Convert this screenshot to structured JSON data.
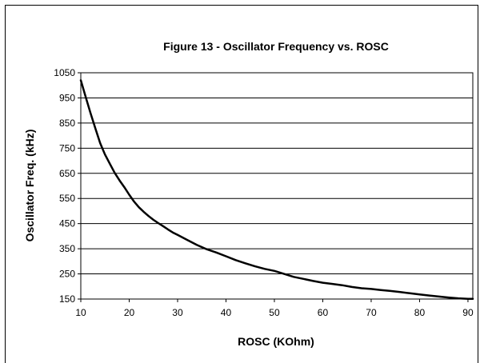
{
  "chart_data": {
    "type": "line",
    "title": "Figure 13 - Oscillator Frequency vs. ROSC",
    "xlabel": "ROSC (KOhm)",
    "ylabel": "Oscillator Freq. (kHz)",
    "xlim": [
      10,
      91
    ],
    "ylim": [
      150,
      1050
    ],
    "x_ticks": [
      10,
      20,
      30,
      40,
      50,
      60,
      70,
      80,
      90
    ],
    "y_ticks": [
      150,
      250,
      350,
      450,
      550,
      650,
      750,
      850,
      950,
      1050
    ],
    "x_tick_labels": [
      "10",
      "20",
      "30",
      "40",
      "50",
      "60",
      "70",
      "80",
      "90"
    ],
    "y_tick_labels": [
      "150",
      "250",
      "350",
      "450",
      "550",
      "650",
      "750",
      "850",
      "950",
      "1050"
    ],
    "grid": "horizontal",
    "series": [
      {
        "color": "#000000",
        "x": [
          10,
          11,
          12,
          13,
          14,
          15,
          16,
          17,
          18,
          19,
          20,
          21,
          22,
          23,
          24,
          25,
          26,
          27,
          28,
          29,
          30,
          32,
          34,
          36,
          38,
          40,
          42,
          44,
          46,
          48,
          50,
          52,
          54,
          56,
          58,
          60,
          62,
          64,
          66,
          68,
          70,
          72,
          74,
          76,
          78,
          80,
          82,
          84,
          86,
          88,
          90,
          91
        ],
        "y": [
          1020,
          955,
          890,
          830,
          770,
          725,
          688,
          652,
          622,
          595,
          565,
          538,
          515,
          497,
          480,
          465,
          452,
          440,
          427,
          415,
          405,
          385,
          365,
          348,
          335,
          320,
          305,
          292,
          280,
          270,
          262,
          250,
          238,
          230,
          222,
          215,
          210,
          205,
          198,
          193,
          190,
          186,
          182,
          178,
          173,
          168,
          164,
          160,
          156,
          153,
          151,
          151
        ]
      }
    ]
  }
}
